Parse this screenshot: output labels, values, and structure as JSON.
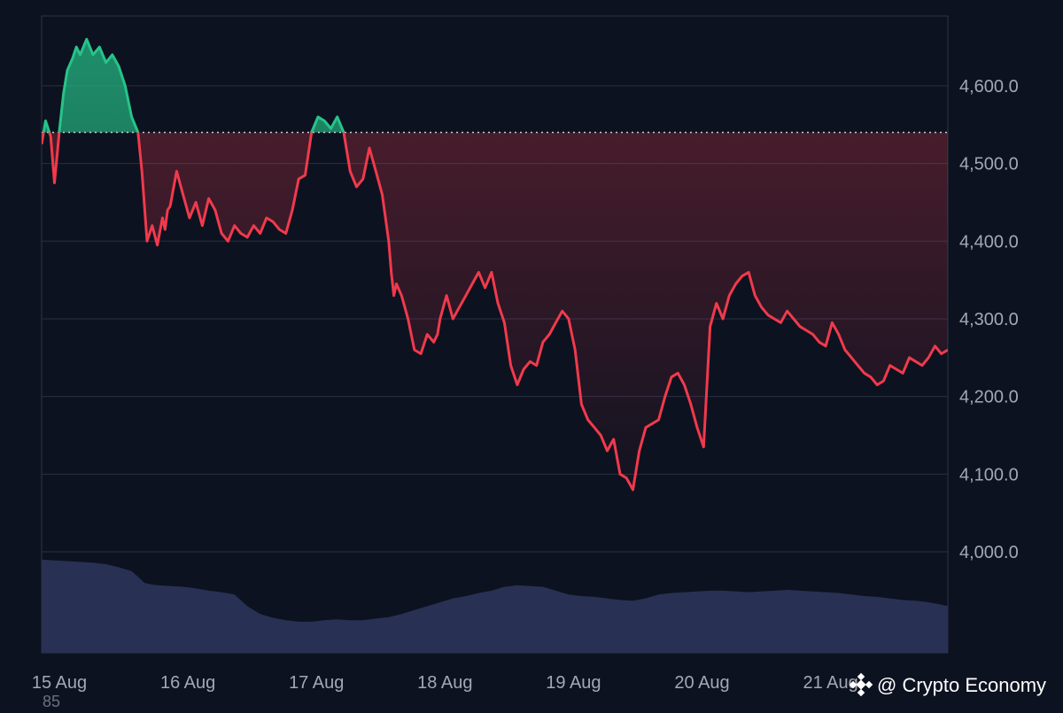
{
  "chart_data": {
    "type": "area",
    "baseline": 4540,
    "ylim": [
      3870,
      4690
    ],
    "yticks": [
      {
        "value": 4600,
        "label": "4,600.0"
      },
      {
        "value": 4500,
        "label": "4,500.0"
      },
      {
        "value": 4400,
        "label": "4,400.0"
      },
      {
        "value": 4300,
        "label": "4,300.0"
      },
      {
        "value": 4200,
        "label": "4,200.0"
      },
      {
        "value": 4100,
        "label": "4,100.0"
      },
      {
        "value": 4000,
        "label": "4,000.0"
      }
    ],
    "xrange": [
      0,
      7.05
    ],
    "xticks": [
      {
        "value": 0,
        "label": "15 Aug"
      },
      {
        "value": 1,
        "label": "16 Aug"
      },
      {
        "value": 2,
        "label": "17 Aug"
      },
      {
        "value": 3,
        "label": "18 Aug"
      },
      {
        "value": 4,
        "label": "19 Aug"
      },
      {
        "value": 5,
        "label": "20 Aug"
      },
      {
        "value": 6,
        "label": "21 Aug"
      }
    ],
    "grid": true,
    "colors": {
      "above": "#26c489",
      "below": "#f03a4c",
      "volume": "#2a3356",
      "grid": "#283040",
      "baseline": "#c9ccd3",
      "background": "#0d1220"
    },
    "price_series": {
      "x": [
        0,
        0.03,
        0.07,
        0.1,
        0.14,
        0.17,
        0.2,
        0.24,
        0.27,
        0.3,
        0.35,
        0.4,
        0.45,
        0.5,
        0.55,
        0.6,
        0.65,
        0.7,
        0.75,
        0.78,
        0.82,
        0.86,
        0.9,
        0.94,
        0.96,
        0.98,
        1.0,
        1.05,
        1.1,
        1.15,
        1.2,
        1.25,
        1.3,
        1.35,
        1.4,
        1.45,
        1.5,
        1.55,
        1.6,
        1.65,
        1.7,
        1.75,
        1.8,
        1.85,
        1.9,
        1.95,
        2.0,
        2.05,
        2.1,
        2.15,
        2.2,
        2.25,
        2.3,
        2.35,
        2.4,
        2.45,
        2.5,
        2.55,
        2.6,
        2.65,
        2.7,
        2.72,
        2.74,
        2.76,
        2.8,
        2.85,
        2.9,
        2.95,
        3.0,
        3.05,
        3.08,
        3.1,
        3.15,
        3.2,
        3.25,
        3.3,
        3.35,
        3.4,
        3.45,
        3.5,
        3.55,
        3.6,
        3.65,
        3.7,
        3.75,
        3.8,
        3.85,
        3.9,
        3.95,
        4.0,
        4.05,
        4.1,
        4.15,
        4.2,
        4.25,
        4.3,
        4.35,
        4.4,
        4.45,
        4.5,
        4.55,
        4.6,
        4.65,
        4.7,
        4.75,
        4.8,
        4.85,
        4.9,
        4.95,
        5.0,
        5.05,
        5.1,
        5.15,
        5.2,
        5.25,
        5.3,
        5.35,
        5.4,
        5.45,
        5.5,
        5.55,
        5.6,
        5.65,
        5.7,
        5.75,
        5.8,
        5.85,
        5.9,
        5.95,
        6.0,
        6.05,
        6.1,
        6.15,
        6.2,
        6.25,
        6.3,
        6.35,
        6.4,
        6.45,
        6.5,
        6.55,
        6.6,
        6.65,
        6.7,
        6.75,
        6.8,
        6.85,
        6.9,
        6.95,
        7.0,
        7.05
      ],
      "y": [
        4525,
        4555,
        4535,
        4475,
        4545,
        4590,
        4620,
        4635,
        4650,
        4640,
        4660,
        4640,
        4650,
        4630,
        4640,
        4625,
        4600,
        4560,
        4540,
        4490,
        4400,
        4420,
        4395,
        4430,
        4415,
        4440,
        4445,
        4490,
        4460,
        4430,
        4450,
        4420,
        4455,
        4440,
        4410,
        4400,
        4420,
        4410,
        4405,
        4420,
        4410,
        4430,
        4425,
        4415,
        4410,
        4440,
        4480,
        4485,
        4540,
        4560,
        4555,
        4545,
        4560,
        4540,
        4490,
        4470,
        4480,
        4520,
        4490,
        4460,
        4400,
        4360,
        4330,
        4345,
        4330,
        4300,
        4260,
        4255,
        4280,
        4270,
        4280,
        4300,
        4330,
        4300,
        4315,
        4330,
        4345,
        4360,
        4340,
        4360,
        4320,
        4295,
        4240,
        4215,
        4235,
        4245,
        4240,
        4270,
        4280,
        4295,
        4310,
        4300,
        4260,
        4190,
        4170,
        4160,
        4150,
        4130,
        4145,
        4100,
        4095,
        4080,
        4130,
        4160,
        4165,
        4170,
        4200,
        4225,
        4230,
        4215,
        4190,
        4160,
        4135,
        4290,
        4320,
        4300,
        4330,
        4345,
        4355,
        4360,
        4330,
        4315,
        4305,
        4300,
        4295,
        4310,
        4300,
        4290,
        4285,
        4280,
        4270,
        4265,
        4295,
        4280,
        4260,
        4250,
        4240,
        4230,
        4225,
        4215,
        4220,
        4240,
        4235,
        4230,
        4250,
        4245,
        4240,
        4250,
        4265,
        4255,
        4260
      ]
    },
    "volume_series": {
      "x": [
        0,
        0.1,
        0.2,
        0.3,
        0.4,
        0.5,
        0.6,
        0.7,
        0.75,
        0.8,
        0.85,
        0.9,
        1.0,
        1.1,
        1.2,
        1.3,
        1.4,
        1.5,
        1.6,
        1.7,
        1.8,
        1.9,
        2.0,
        2.1,
        2.2,
        2.3,
        2.4,
        2.5,
        2.6,
        2.7,
        2.8,
        2.9,
        3.0,
        3.1,
        3.2,
        3.3,
        3.4,
        3.5,
        3.6,
        3.7,
        3.8,
        3.9,
        4.0,
        4.1,
        4.2,
        4.3,
        4.4,
        4.5,
        4.6,
        4.7,
        4.8,
        4.9,
        5.0,
        5.1,
        5.2,
        5.3,
        5.4,
        5.5,
        5.6,
        5.7,
        5.8,
        5.9,
        6.0,
        6.1,
        6.2,
        6.3,
        6.4,
        6.5,
        6.6,
        6.7,
        6.8,
        6.9,
        7.0,
        7.05
      ],
      "y": [
        3990,
        3989,
        3988,
        3987,
        3986,
        3984,
        3980,
        3975,
        3968,
        3960,
        3958,
        3957,
        3956,
        3955,
        3953,
        3950,
        3948,
        3945,
        3930,
        3920,
        3915,
        3912,
        3910,
        3910,
        3912,
        3913,
        3912,
        3912,
        3914,
        3916,
        3920,
        3925,
        3930,
        3935,
        3940,
        3943,
        3947,
        3950,
        3955,
        3957,
        3956,
        3955,
        3950,
        3945,
        3943,
        3942,
        3940,
        3938,
        3937,
        3940,
        3945,
        3947,
        3948,
        3949,
        3950,
        3950,
        3949,
        3948,
        3949,
        3950,
        3951,
        3950,
        3949,
        3948,
        3947,
        3945,
        3943,
        3942,
        3940,
        3938,
        3937,
        3935,
        3932,
        3930
      ]
    }
  },
  "watermark": {
    "logo_icon": "binance-diamond-icon",
    "text": "@ Crypto Economy"
  },
  "stray_label": "85"
}
